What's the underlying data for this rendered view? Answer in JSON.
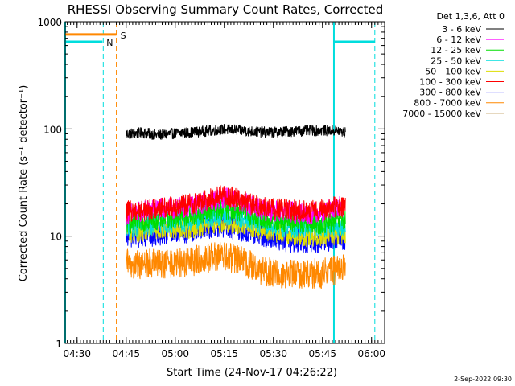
{
  "chart_data": {
    "type": "line",
    "title": "RHESSI Observing Summary Count Rates, Corrected",
    "xlabel": "Start Time (24-Nov-17 04:26:22)",
    "ylabel": "Corrected Count Rate (s⁻¹ detector⁻¹)",
    "y_scale": "log",
    "ylim": [
      1,
      1000
    ],
    "xlim": [
      "04:26:22",
      "06:04:00"
    ],
    "x_ticks": [
      "04:30",
      "04:45",
      "05:00",
      "05:15",
      "05:30",
      "05:45",
      "06:00"
    ],
    "y_ticks": [
      "1",
      "10",
      "100",
      "1000"
    ],
    "legend_title": "Det 1,3,6, Att 0",
    "legend_placement": "right",
    "series": [
      {
        "name": "3 - 6 keV",
        "color": "#000000",
        "points": [
          [
            "04:45:00",
            90
          ],
          [
            "04:50:00",
            92
          ],
          [
            "04:55:00",
            88
          ],
          [
            "05:00:00",
            91
          ],
          [
            "05:05:00",
            93
          ],
          [
            "05:10:00",
            96
          ],
          [
            "05:15:00",
            99
          ],
          [
            "05:20:00",
            97
          ],
          [
            "05:25:00",
            94
          ],
          [
            "05:30:00",
            93
          ],
          [
            "05:35:00",
            95
          ],
          [
            "05:40:00",
            96
          ],
          [
            "05:45:00",
            97
          ],
          [
            "05:50:00",
            96
          ],
          [
            "05:52:00",
            92
          ]
        ]
      },
      {
        "name": "6 - 12 keV",
        "color": "#ff00ff",
        "points": [
          [
            "04:45:00",
            16
          ],
          [
            "04:50:00",
            17
          ],
          [
            "04:55:00",
            18
          ],
          [
            "05:00:00",
            18
          ],
          [
            "05:05:00",
            19
          ],
          [
            "05:10:00",
            21
          ],
          [
            "05:15:00",
            23
          ],
          [
            "05:20:00",
            21
          ],
          [
            "05:25:00",
            18
          ],
          [
            "05:30:00",
            17
          ],
          [
            "05:35:00",
            17
          ],
          [
            "05:40:00",
            16
          ],
          [
            "05:45:00",
            17
          ],
          [
            "05:50:00",
            19
          ],
          [
            "05:52:00",
            18
          ]
        ]
      },
      {
        "name": "12 - 25 keV",
        "color": "#00dd00",
        "points": [
          [
            "04:45:00",
            13
          ],
          [
            "04:50:00",
            14
          ],
          [
            "04:55:00",
            14.5
          ],
          [
            "05:00:00",
            15
          ],
          [
            "05:05:00",
            15.5
          ],
          [
            "05:10:00",
            17
          ],
          [
            "05:15:00",
            18
          ],
          [
            "05:20:00",
            17
          ],
          [
            "05:25:00",
            15
          ],
          [
            "05:30:00",
            14
          ],
          [
            "05:35:00",
            13.5
          ],
          [
            "05:40:00",
            13
          ],
          [
            "05:45:00",
            13
          ],
          [
            "05:50:00",
            14
          ],
          [
            "05:52:00",
            14
          ]
        ]
      },
      {
        "name": "25 - 50 keV",
        "color": "#00dddd",
        "points": [
          [
            "04:45:00",
            12
          ],
          [
            "04:50:00",
            12.5
          ],
          [
            "04:55:00",
            13
          ],
          [
            "05:00:00",
            13.5
          ],
          [
            "05:05:00",
            14
          ],
          [
            "05:10:00",
            15
          ],
          [
            "05:15:00",
            16
          ],
          [
            "05:20:00",
            15
          ],
          [
            "05:25:00",
            13.5
          ],
          [
            "05:30:00",
            12.5
          ],
          [
            "05:35:00",
            12
          ],
          [
            "05:40:00",
            12
          ],
          [
            "05:45:00",
            12
          ],
          [
            "05:50:00",
            12.5
          ],
          [
            "05:52:00",
            12.5
          ]
        ]
      },
      {
        "name": "50 - 100 keV",
        "color": "#dddd00",
        "points": [
          [
            "04:45:00",
            11
          ],
          [
            "04:50:00",
            11
          ],
          [
            "04:55:00",
            11.5
          ],
          [
            "05:00:00",
            12
          ],
          [
            "05:05:00",
            12
          ],
          [
            "05:10:00",
            13
          ],
          [
            "05:15:00",
            13.5
          ],
          [
            "05:20:00",
            13
          ],
          [
            "05:25:00",
            12
          ],
          [
            "05:30:00",
            11
          ],
          [
            "05:35:00",
            10.5
          ],
          [
            "05:40:00",
            10
          ],
          [
            "05:45:00",
            10
          ],
          [
            "05:50:00",
            10.5
          ],
          [
            "05:52:00",
            10.5
          ]
        ]
      },
      {
        "name": "100 - 300 keV",
        "color": "#ff0000",
        "points": [
          [
            "04:45:00",
            17
          ],
          [
            "04:50:00",
            17.5
          ],
          [
            "04:55:00",
            18.5
          ],
          [
            "05:00:00",
            19
          ],
          [
            "05:05:00",
            20
          ],
          [
            "05:10:00",
            22
          ],
          [
            "05:15:00",
            24
          ],
          [
            "05:20:00",
            22
          ],
          [
            "05:25:00",
            19
          ],
          [
            "05:30:00",
            18
          ],
          [
            "05:35:00",
            17.5
          ],
          [
            "05:40:00",
            17
          ],
          [
            "05:45:00",
            17.5
          ],
          [
            "05:50:00",
            19
          ],
          [
            "05:52:00",
            18.5
          ]
        ]
      },
      {
        "name": "300 - 800 keV",
        "color": "#0000ff",
        "points": [
          [
            "04:45:00",
            10
          ],
          [
            "04:50:00",
            10
          ],
          [
            "04:55:00",
            10.5
          ],
          [
            "05:00:00",
            11
          ],
          [
            "05:05:00",
            11
          ],
          [
            "05:10:00",
            12
          ],
          [
            "05:15:00",
            12.5
          ],
          [
            "05:20:00",
            11.5
          ],
          [
            "05:25:00",
            10.5
          ],
          [
            "05:30:00",
            9.5
          ],
          [
            "05:35:00",
            9
          ],
          [
            "05:40:00",
            9
          ],
          [
            "05:45:00",
            9
          ],
          [
            "05:50:00",
            9.5
          ],
          [
            "05:52:00",
            9.5
          ]
        ]
      },
      {
        "name": "800 - 7000 keV",
        "color": "#ff8800",
        "points": [
          [
            "04:45:00",
            5.5
          ],
          [
            "04:50:00",
            5.5
          ],
          [
            "04:55:00",
            5.5
          ],
          [
            "05:00:00",
            5.5
          ],
          [
            "05:05:00",
            5.8
          ],
          [
            "05:10:00",
            6.3
          ],
          [
            "05:15:00",
            6.5
          ],
          [
            "05:20:00",
            6
          ],
          [
            "05:25:00",
            5
          ],
          [
            "05:30:00",
            4.5
          ],
          [
            "05:35:00",
            4.5
          ],
          [
            "05:40:00",
            4.5
          ],
          [
            "05:45:00",
            4.5
          ],
          [
            "05:50:00",
            5
          ],
          [
            "05:52:00",
            5
          ]
        ]
      },
      {
        "name": "7000 - 15000 keV",
        "color": "#996600",
        "points": []
      }
    ],
    "saa_flags": [
      {
        "label": "N",
        "color": "#00dddd",
        "start": "04:26:22",
        "end": "04:37:45",
        "value": 650
      },
      {
        "label": "S",
        "color": "#ff8800",
        "start": "04:26:22",
        "end": "04:42:00",
        "value": 760
      },
      {
        "label": "",
        "color": "#00dddd",
        "start": "05:48:30",
        "end": "06:01:00",
        "value": 650
      }
    ],
    "vertical_markers": [
      {
        "time": "04:26:22",
        "color": "#00dddd",
        "style": "solid"
      },
      {
        "time": "04:38:00",
        "color": "#00dddd",
        "style": "dashed"
      },
      {
        "time": "04:42:00",
        "color": "#ff8800",
        "style": "dashed"
      },
      {
        "time": "05:48:30",
        "color": "#00dddd",
        "style": "solid"
      },
      {
        "time": "06:01:00",
        "color": "#00dddd",
        "style": "dashed"
      }
    ]
  },
  "footer": {
    "timestamp": "2-Sep-2022 09:30"
  }
}
